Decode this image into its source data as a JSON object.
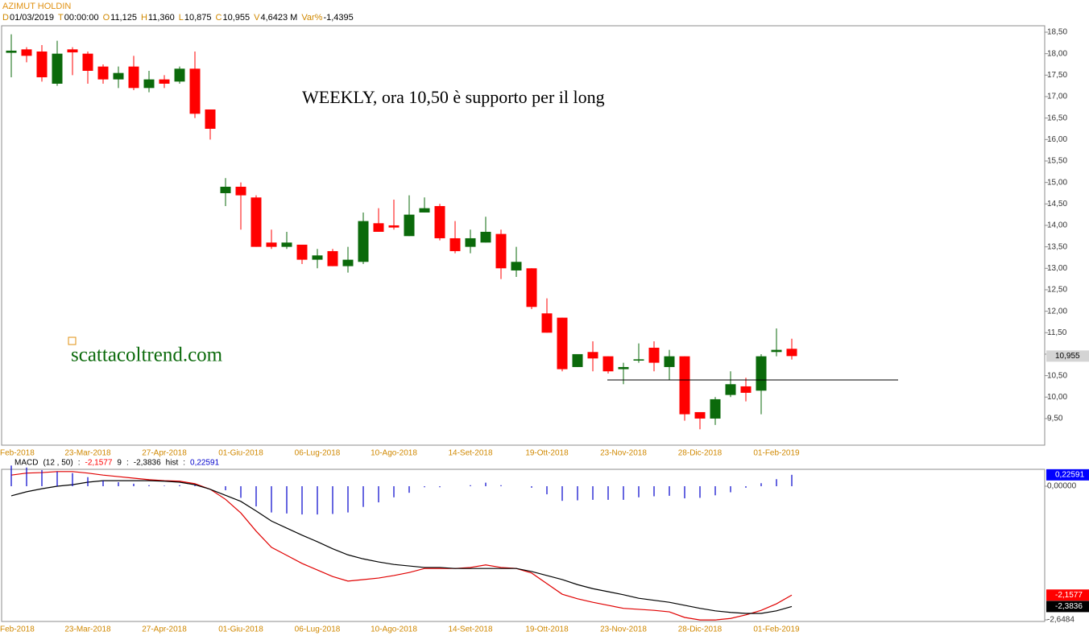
{
  "header": {
    "title": "AZIMUT HOLDIN",
    "fields": [
      {
        "key": "D",
        "value": "01/03/2019"
      },
      {
        "key": "T",
        "value": "00:00:00"
      },
      {
        "key": "O",
        "value": "11,125"
      },
      {
        "key": "H",
        "value": "11,360"
      },
      {
        "key": "L",
        "value": "10,875"
      },
      {
        "key": "C",
        "value": "10,955"
      },
      {
        "key": "V",
        "value": "4,6423 M"
      },
      {
        "key": "Var%",
        "value": "-1,4395"
      }
    ]
  },
  "chart_data": [
    {
      "type": "candlestick",
      "annotations": [
        "WEEKLY, ora 10,50 è supporto per il long",
        "scattacoltrend.com"
      ],
      "categories": [
        "Feb-2018",
        null,
        null,
        null,
        null,
        "23-Mar-2018",
        null,
        null,
        null,
        null,
        "27-Apr-2018",
        null,
        null,
        null,
        null,
        "01-Giu-2018",
        null,
        null,
        null,
        null,
        "06-Lug-2018",
        null,
        null,
        null,
        null,
        "10-Ago-2018",
        null,
        null,
        null,
        null,
        "14-Set-2018",
        null,
        null,
        null,
        null,
        "19-Ott-2018",
        null,
        null,
        null,
        null,
        "23-Nov-2018",
        null,
        null,
        null,
        null,
        "28-Dic-2018",
        null,
        null,
        null,
        null,
        "01-Feb-2019",
        null
      ],
      "open": [
        18.02,
        18.1,
        18.05,
        17.3,
        18.1,
        18.0,
        17.7,
        17.4,
        17.7,
        17.2,
        17.4,
        17.35,
        17.65,
        16.7,
        14.75,
        14.9,
        14.65,
        13.6,
        13.5,
        13.55,
        13.2,
        13.4,
        13.05,
        13.15,
        14.05,
        14.0,
        13.75,
        14.3,
        14.45,
        13.7,
        13.5,
        13.6,
        13.8,
        12.95,
        13.0,
        11.95,
        11.85,
        10.7,
        11.05,
        10.95,
        10.65,
        10.85,
        11.15,
        10.7,
        10.95,
        9.65,
        9.5,
        10.05,
        10.25,
        10.15,
        11.05,
        11.125
      ],
      "high": [
        18.45,
        18.15,
        18.2,
        18.3,
        18.15,
        18.05,
        17.75,
        17.7,
        17.95,
        17.6,
        17.5,
        17.7,
        18.05,
        16.7,
        15.1,
        15.0,
        14.7,
        13.9,
        13.85,
        13.55,
        13.45,
        13.45,
        13.5,
        14.3,
        14.4,
        14.6,
        14.7,
        14.65,
        14.5,
        14.1,
        13.9,
        14.2,
        13.9,
        13.5,
        13.0,
        12.3,
        11.85,
        11.0,
        11.3,
        10.95,
        10.8,
        11.25,
        11.3,
        11.1,
        10.95,
        9.65,
        10.0,
        10.6,
        10.45,
        11.0,
        11.6,
        11.36
      ],
      "low": [
        17.45,
        17.8,
        17.35,
        17.25,
        17.5,
        17.3,
        17.3,
        17.2,
        17.15,
        17.1,
        17.2,
        17.3,
        16.5,
        16.0,
        14.45,
        13.9,
        13.5,
        13.45,
        13.45,
        13.1,
        13.0,
        13.05,
        12.9,
        13.1,
        13.85,
        13.9,
        13.75,
        14.3,
        13.65,
        13.35,
        13.35,
        13.6,
        12.75,
        12.8,
        12.05,
        11.5,
        10.6,
        10.7,
        10.6,
        10.55,
        10.3,
        10.8,
        10.6,
        10.4,
        9.45,
        9.25,
        9.35,
        10.0,
        9.9,
        9.6,
        10.95,
        10.875
      ],
      "close": [
        18.07,
        17.95,
        17.45,
        18.0,
        18.03,
        17.6,
        17.4,
        17.55,
        17.2,
        17.4,
        17.3,
        17.65,
        16.6,
        16.25,
        14.9,
        14.7,
        13.5,
        13.5,
        13.6,
        13.2,
        13.3,
        13.05,
        13.2,
        14.1,
        13.85,
        13.95,
        14.25,
        14.4,
        13.7,
        13.4,
        13.7,
        13.85,
        13.0,
        13.15,
        12.1,
        11.5,
        10.65,
        11.0,
        10.9,
        10.6,
        10.7,
        10.88,
        10.8,
        10.95,
        9.6,
        9.5,
        9.95,
        10.3,
        10.1,
        10.95,
        11.1,
        10.955
      ],
      "up_color": "#0b6a0b",
      "down_color": "#ff0000",
      "support": 10.4,
      "last_price": {
        "value": 10.955,
        "label": "10,955"
      },
      "ylim": [
        8.88,
        18.65
      ],
      "yticks": [
        {
          "value": 18.5,
          "label": "18,50"
        },
        {
          "value": 18,
          "label": "18,00"
        },
        {
          "value": 17.5,
          "label": "17,50"
        },
        {
          "value": 17,
          "label": "17,00"
        },
        {
          "value": 16.5,
          "label": "16,50"
        },
        {
          "value": 16,
          "label": "16,00"
        },
        {
          "value": 15.5,
          "label": "15,50"
        },
        {
          "value": 15,
          "label": "15,00"
        },
        {
          "value": 14.5,
          "label": "14,50"
        },
        {
          "value": 14,
          "label": "14,00"
        },
        {
          "value": 13.5,
          "label": "13,50"
        },
        {
          "value": 13,
          "label": "13,00"
        },
        {
          "value": 12.5,
          "label": "12,50"
        },
        {
          "value": 12,
          "label": "12,00"
        },
        {
          "value": 11.5,
          "label": "11,50"
        },
        {
          "value": 11,
          "label": "11,00"
        },
        {
          "value": 10.5,
          "label": "10,50"
        },
        {
          "value": 10,
          "label": "10,00"
        },
        {
          "value": 9.5,
          "label": "9,50"
        }
      ]
    },
    {
      "type": "macd",
      "legend": [
        {
          "text": "MACD",
          "color": "#000000"
        },
        {
          "text": "(12 , 50)",
          "color": "#000000"
        },
        {
          "text": ":",
          "color": "#000000"
        },
        {
          "text": "-2,1577",
          "color": "#ff0000"
        },
        {
          "text": "9",
          "color": "#000000"
        },
        {
          "text": ":",
          "color": "#000000"
        },
        {
          "text": "-2,3836",
          "color": "#000000"
        },
        {
          "text": "hist",
          "color": "#000000"
        },
        {
          "text": ":",
          "color": "#000000"
        },
        {
          "text": "0,22591",
          "color": "#0000cc"
        }
      ],
      "series": [
        {
          "name": "MACD",
          "color": "#e00000",
          "values": [
            0.22,
            0.26,
            0.27,
            0.29,
            0.29,
            0.26,
            0.22,
            0.19,
            0.16,
            0.13,
            0.11,
            0.1,
            0.05,
            -0.06,
            -0.26,
            -0.53,
            -0.89,
            -1.21,
            -1.37,
            -1.53,
            -1.66,
            -1.79,
            -1.88,
            -1.85,
            -1.82,
            -1.77,
            -1.71,
            -1.63,
            -1.63,
            -1.63,
            -1.61,
            -1.56,
            -1.61,
            -1.63,
            -1.72,
            -1.93,
            -2.14,
            -2.23,
            -2.3,
            -2.36,
            -2.42,
            -2.44,
            -2.46,
            -2.49,
            -2.6,
            -2.65,
            -2.65,
            -2.62,
            -2.55,
            -2.46,
            -2.33,
            -2.1577
          ]
        },
        {
          "name": "signal",
          "color": "#000000",
          "values": [
            -0.19,
            -0.11,
            -0.05,
            0,
            0.03,
            0.08,
            0.11,
            0.11,
            0.11,
            0.11,
            0.1,
            0.08,
            0.03,
            -0.06,
            -0.18,
            -0.3,
            -0.49,
            -0.69,
            -0.83,
            -0.97,
            -1.1,
            -1.24,
            -1.36,
            -1.44,
            -1.5,
            -1.55,
            -1.58,
            -1.61,
            -1.61,
            -1.63,
            -1.63,
            -1.63,
            -1.63,
            -1.63,
            -1.69,
            -1.77,
            -1.85,
            -1.95,
            -2.03,
            -2.09,
            -2.15,
            -2.22,
            -2.26,
            -2.3,
            -2.36,
            -2.42,
            -2.47,
            -2.5,
            -2.52,
            -2.52,
            -2.47,
            -2.3836
          ]
        },
        {
          "name": "hist",
          "color": "#0000cc",
          "values": [
            0.41,
            0.37,
            0.32,
            0.29,
            0.26,
            0.18,
            0.11,
            0.08,
            0.05,
            0.02,
            0.01,
            0.02,
            0.02,
            0,
            -0.08,
            -0.23,
            -0.4,
            -0.52,
            -0.54,
            -0.56,
            -0.56,
            -0.55,
            -0.52,
            -0.41,
            -0.32,
            -0.22,
            -0.13,
            -0.02,
            -0.02,
            0,
            0.02,
            0.07,
            0.02,
            0,
            -0.03,
            -0.16,
            -0.29,
            -0.28,
            -0.27,
            -0.27,
            -0.27,
            -0.22,
            -0.2,
            -0.19,
            -0.24,
            -0.23,
            -0.18,
            -0.12,
            -0.03,
            0.06,
            0.14,
            0.22591
          ]
        }
      ],
      "last_labels": [
        {
          "value": 0.22591,
          "label": "0,22591",
          "color": "#0000ff"
        },
        {
          "value": -2.1577,
          "label": "-2,1577",
          "color": "#ff0000"
        },
        {
          "value": -2.3836,
          "label": "-2,3836",
          "color": "#000000"
        }
      ],
      "ylim": [
        -2.68,
        0.335
      ],
      "yticks": [
        {
          "value": 0,
          "label": "0,00000"
        },
        {
          "value": -2.6484,
          "label": "-2,6484"
        }
      ]
    }
  ]
}
